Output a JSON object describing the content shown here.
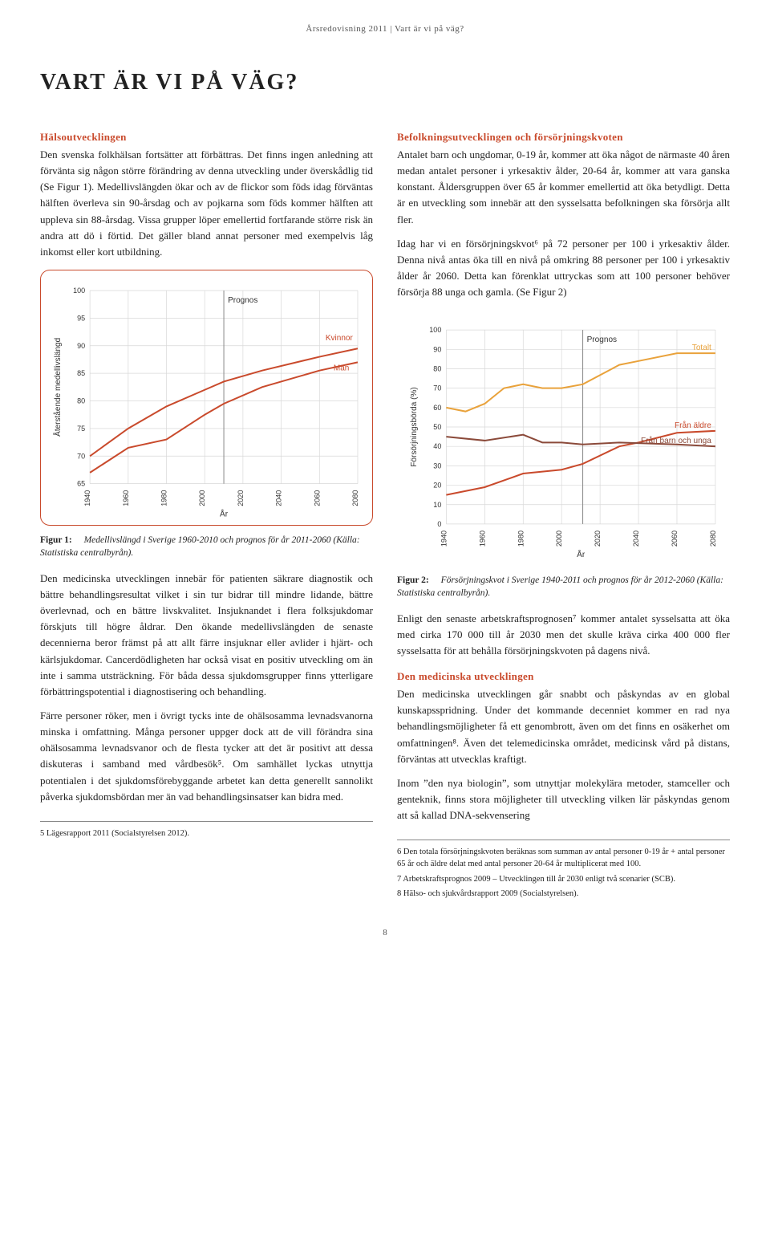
{
  "header": "Årsredovisning 2011 | Vart är vi på väg?",
  "title": "VART ÄR VI PÅ VÄG?",
  "left": {
    "h1": "Hälsoutvecklingen",
    "p1": "Den svenska folkhälsan fortsätter att förbättras. Det finns ingen anledning att förvänta sig någon större förändring av denna utveckling under överskådlig tid (Se Figur 1). Medellivslängden ökar och av de flickor som föds idag förväntas hälften överleva sin 90-årsdag och av pojkarna som föds kommer hälften att uppleva sin 88-årsdag. Vissa grupper löper emellertid fortfarande större risk än andra att dö i förtid. Det gäller bland annat personer med exempelvis låg inkomst eller kort utbildning.",
    "p2": "Den medicinska utvecklingen innebär för patienten säkrare diagnostik och bättre behandlingsresultat vilket i sin tur bidrar till mindre lidande, bättre överlevnad, och en bättre livskvalitet. Insjuknandet i flera folksjukdomar förskjuts till högre åldrar. Den ökande medellivslängden de senaste decennierna beror främst på att allt färre insjuknar eller avlider i hjärt- och kärlsjukdomar. Cancerdödligheten har också visat en positiv utveckling om än inte i samma utsträckning. För båda dessa sjukdomsgrupper finns ytterligare förbättringspotential i diagnostisering och behandling.",
    "p3": "Färre personer röker, men i övrigt tycks inte de ohälsosamma levnadsvanorna minska i omfattning. Många personer uppger dock att de vill förändra sina ohälsosamma levnadsvanor och de flesta tycker att det är positivt att dessa diskuteras i samband med vårdbesök⁵. Om samhället lyckas utnyttja potentialen i det sjukdomsförebyggande arbetet kan detta generellt sannolikt påverka sjukdomsbördan mer än vad behandlingsinsatser kan bidra med.",
    "footnote5": "5  Lägesrapport 2011 (Socialstyrelsen 2012)."
  },
  "right": {
    "h1": "Befolkningsutvecklingen och försörjningskvoten",
    "p1": "Antalet barn och ungdomar, 0-19 år, kommer att öka något de närmaste 40 åren medan antalet personer i yrkesaktiv ålder, 20-64 år, kommer att vara ganska konstant. Åldersgruppen över 65 år kommer emellertid att öka betydligt. Detta är en utveckling som innebär att den sysselsatta befolkningen ska försörja allt fler.",
    "p2": "Idag har vi en försörjningskvot⁶ på 72 personer per 100 i yrkesaktiv ålder. Denna nivå antas öka till en nivå på omkring 88 personer per 100 i yrkesaktiv ålder år 2060. Detta kan förenklat uttryckas som att 100 personer behöver försörja 88 unga och gamla. (Se Figur 2)",
    "p3": "Enligt den senaste arbetskraftsprognosen⁷ kommer antalet sysselsatta att öka med cirka 170 000 till år 2030 men det skulle kräva cirka 400 000 fler sysselsatta för att behålla försörjningskvoten på dagens nivå.",
    "h2": "Den medicinska utvecklingen",
    "p4": "Den medicinska utvecklingen går snabbt och påskyndas av en global kunskapsspridning. Under det kommande decenniet kommer en rad nya behandlingsmöjligheter få ett genombrott, även om det finns en osäkerhet om omfattningen⁸. Även det telemedicinska området, medicinsk vård på distans, förväntas att utvecklas kraftigt.",
    "p5": "Inom ”den nya biologin”, som utnyttjar molekylära metoder, stamceller och genteknik, finns stora möjligheter till utveckling vilken lär påskyndas genom att så kallad DNA-sekvensering",
    "footnote6": "6  Den totala försörjningskvoten beräknas som summan av antal personer 0-19 år + antal personer 65 år och äldre delat med antal personer 20-64 år multiplicerat med 100.",
    "footnote7": "7  Arbetskraftsprognos 2009 – Utvecklingen till år 2030 enligt två scenarier (SCB).",
    "footnote8": "8  Hälso- och sjukvårdsrapport 2009 (Socialstyrelsen)."
  },
  "figure1": {
    "caption_label": "Figur 1:",
    "caption": "Medellivslängd i Sverige 1960-2010 och prognos för år 2011-2060 (Källa: Statistiska centralbyrån).",
    "type": "line",
    "ylabel": "Återstående medellivslängd",
    "xlabel": "År",
    "prognos_label": "Prognos",
    "series_kvinnor_label": "Kvinnor",
    "series_man_label": "Män",
    "x_ticks": [
      1940,
      1960,
      1980,
      2000,
      2020,
      2040,
      2060,
      2080
    ],
    "y_ticks": [
      65,
      70,
      75,
      80,
      85,
      90,
      95,
      100
    ],
    "x_range": [
      1940,
      2080
    ],
    "y_range": [
      65,
      100
    ],
    "prognos_x": 2010,
    "kvinnor": [
      [
        1940,
        70
      ],
      [
        1960,
        75
      ],
      [
        1980,
        79
      ],
      [
        2000,
        82
      ],
      [
        2010,
        83.5
      ],
      [
        2030,
        85.5
      ],
      [
        2060,
        88
      ],
      [
        2080,
        89.5
      ]
    ],
    "man": [
      [
        1940,
        67
      ],
      [
        1960,
        71.5
      ],
      [
        1980,
        73
      ],
      [
        2000,
        77.5
      ],
      [
        2010,
        79.5
      ],
      [
        2030,
        82.5
      ],
      [
        2060,
        85.5
      ],
      [
        2080,
        87
      ]
    ],
    "colors": {
      "kvinnor": "#c94a2c",
      "man": "#c94a2c",
      "grid": "#d8d8d8",
      "axis": "#555",
      "prognos_line": "#888",
      "text": "#333"
    },
    "line_width": 2,
    "label_fontsize": 10,
    "tick_fontsize": 9
  },
  "figure2": {
    "caption_label": "Figur 2:",
    "caption": "Försörjningskvot i Sverige 1940-2011 och prognos för år 2012-2060 (Källa: Statistiska centralbyrån).",
    "type": "line",
    "ylabel": "Försörjningsbörda (%)",
    "xlabel": "År",
    "prognos_label": "Prognos",
    "x_ticks": [
      1940,
      1960,
      1980,
      2000,
      2020,
      2040,
      2060,
      2080
    ],
    "y_ticks": [
      0,
      10,
      20,
      30,
      40,
      50,
      60,
      70,
      80,
      90,
      100
    ],
    "x_range": [
      1940,
      2080
    ],
    "y_range": [
      0,
      100
    ],
    "prognos_x": 2011,
    "series": {
      "totalt": {
        "label": "Totalt",
        "color": "#e9a23b",
        "data": [
          [
            1940,
            60
          ],
          [
            1950,
            58
          ],
          [
            1960,
            62
          ],
          [
            1970,
            70
          ],
          [
            1980,
            72
          ],
          [
            1990,
            70
          ],
          [
            2000,
            70
          ],
          [
            2011,
            72
          ],
          [
            2030,
            82
          ],
          [
            2040,
            84
          ],
          [
            2060,
            88
          ],
          [
            2080,
            88
          ]
        ]
      },
      "aldre": {
        "label": "Från äldre",
        "color": "#c94a2c",
        "data": [
          [
            1940,
            15
          ],
          [
            1960,
            19
          ],
          [
            1980,
            26
          ],
          [
            2000,
            28
          ],
          [
            2011,
            31
          ],
          [
            2030,
            40
          ],
          [
            2040,
            42
          ],
          [
            2060,
            47
          ],
          [
            2080,
            48
          ]
        ]
      },
      "barn": {
        "label": "Från barn och unga",
        "color": "#8b4a3a",
        "data": [
          [
            1940,
            45
          ],
          [
            1960,
            43
          ],
          [
            1980,
            46
          ],
          [
            1990,
            42
          ],
          [
            2000,
            42
          ],
          [
            2011,
            41
          ],
          [
            2030,
            42
          ],
          [
            2060,
            41
          ],
          [
            2080,
            40
          ]
        ]
      }
    },
    "colors": {
      "grid": "#d8d8d8",
      "axis": "#555",
      "prognos_line": "#888",
      "text": "#333"
    },
    "line_width": 2,
    "label_fontsize": 10,
    "tick_fontsize": 9
  },
  "page_number": "8"
}
